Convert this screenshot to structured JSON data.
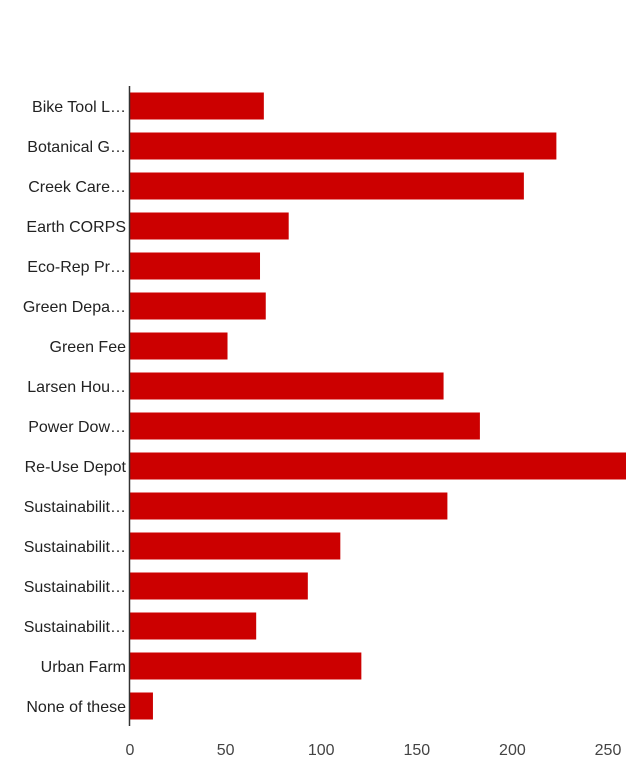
{
  "chart_data": {
    "type": "bar",
    "orientation": "horizontal",
    "title": "",
    "xlabel": "",
    "ylabel": "",
    "categories": [
      "Bike Tool L…",
      "Botanical G…",
      "Creek Care…",
      "Earth CORPS",
      "Eco-Rep Pr…",
      "Green Depa…",
      "Green Fee",
      "Larsen Hou…",
      "Power Dow…",
      "Re-Use Depot",
      "Sustainabilit…",
      "Sustainabilit…",
      "Sustainabilit…",
      "Sustainabilit…",
      "Urban Farm",
      "None of these"
    ],
    "values": [
      70,
      223,
      206,
      83,
      68,
      71,
      51,
      164,
      183,
      260,
      166,
      110,
      93,
      66,
      121,
      12
    ],
    "xlim": [
      0,
      250
    ],
    "xticks": [
      0,
      50,
      100,
      150,
      200,
      250
    ],
    "grid": false,
    "legend": "none",
    "bar_color": "#cc0000",
    "axis_color": "#333333"
  }
}
